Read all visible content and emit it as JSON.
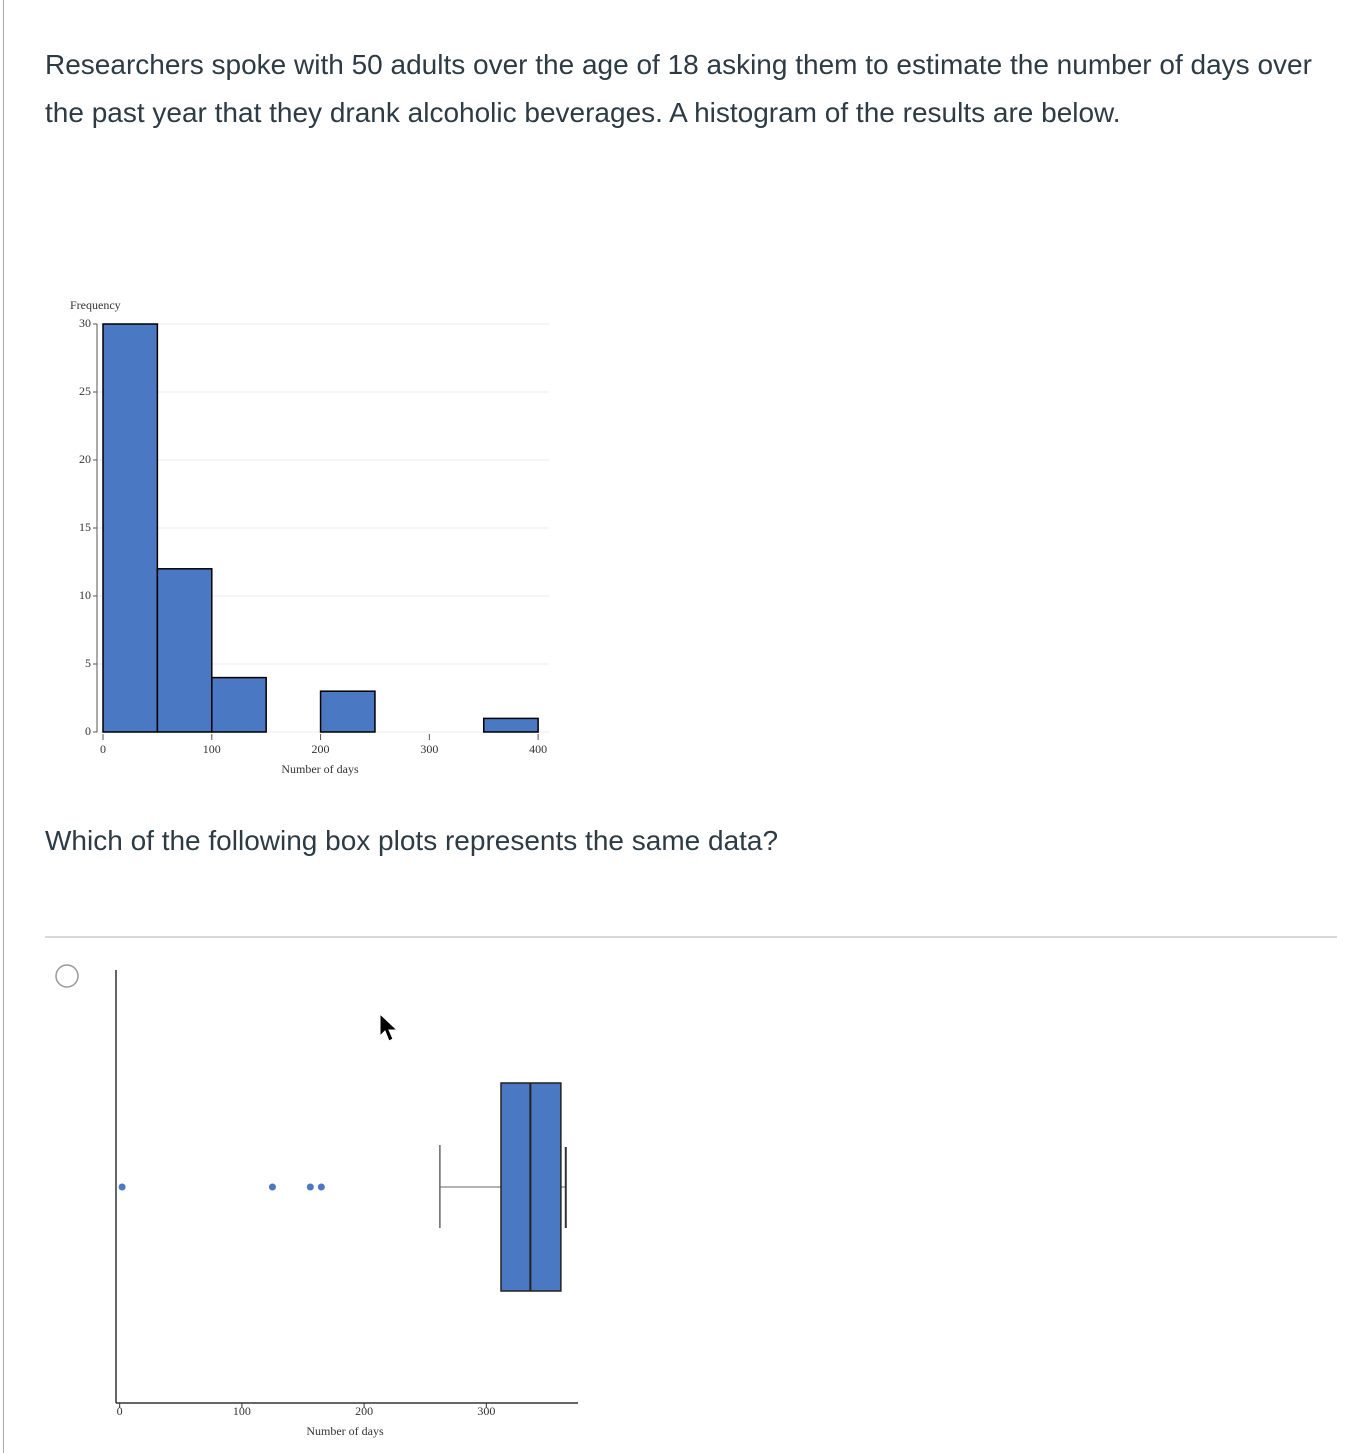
{
  "question": "Researchers spoke with 50 adults over the age of 18 asking them to estimate the number of days over the past year that they drank alcoholic beverages.  A histogram of the results are below.",
  "prompt": "Which of the following box plots represents the same data?",
  "chart_data": [
    {
      "type": "histogram",
      "y_label": "Frequency",
      "x_label": "Number of days",
      "color": "#4a78c2",
      "bins": [
        0,
        50,
        100,
        150,
        200,
        250,
        300,
        350,
        400
      ],
      "values": [
        30,
        12,
        4,
        0,
        3,
        0,
        0,
        1
      ],
      "xlim": [
        0,
        410
      ],
      "xticks": [
        0,
        100,
        200,
        300,
        400
      ],
      "ylim": [
        0,
        30
      ],
      "yticks": [
        0,
        5,
        10,
        15,
        20,
        25,
        30
      ],
      "grid": true
    },
    {
      "type": "box",
      "x_label": "Number of days",
      "color": "#4a78c2",
      "min": 262,
      "q1": 312,
      "median": 336,
      "q3": 361,
      "max": 365,
      "outliers": [
        2,
        125,
        156,
        165
      ],
      "xlim": [
        -3,
        375
      ],
      "xticks": [
        0,
        100,
        200,
        300
      ]
    }
  ]
}
